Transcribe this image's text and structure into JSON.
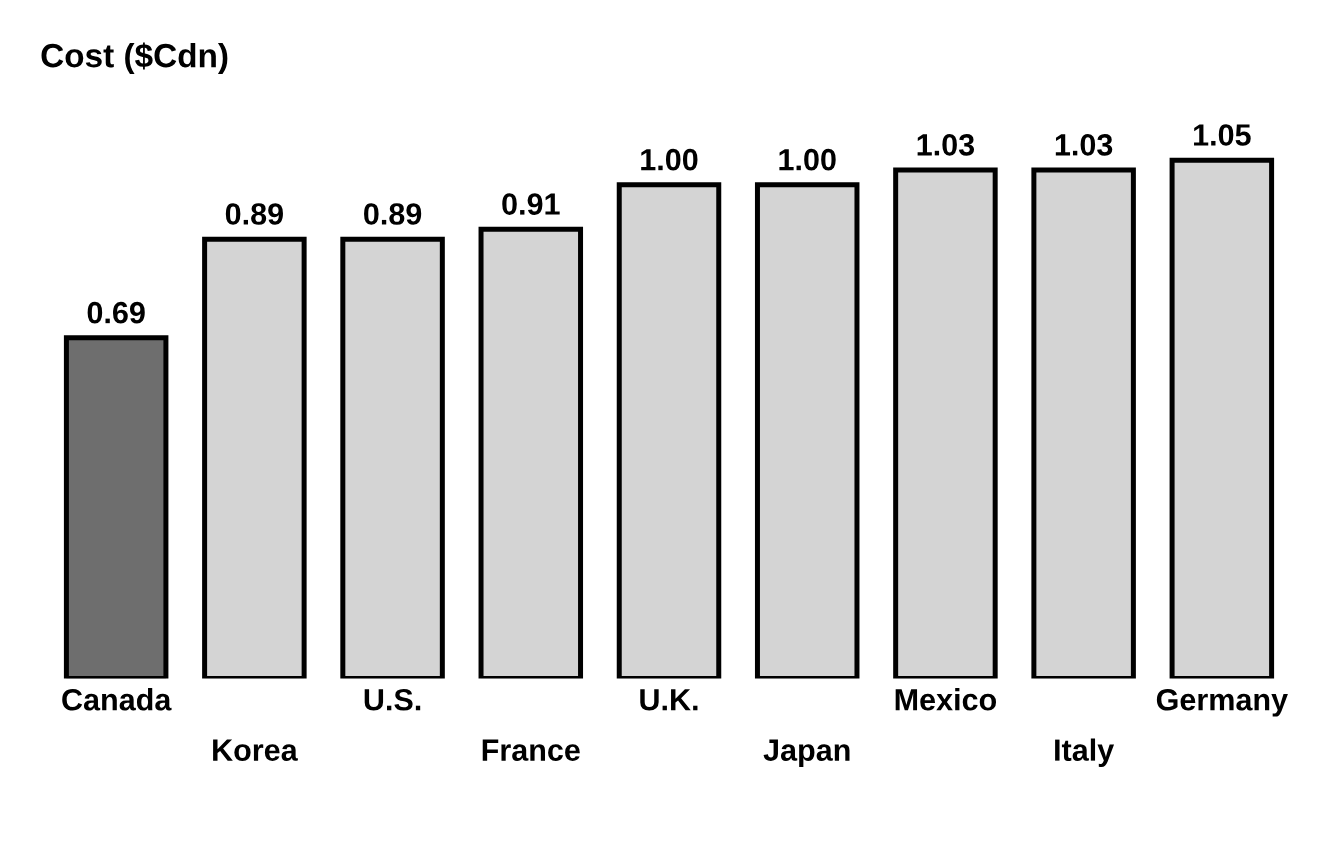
{
  "chart_data": {
    "type": "bar",
    "title": "Cost ($Cdn)",
    "categories": [
      "Canada",
      "Korea",
      "U.S.",
      "France",
      "U.K.",
      "Japan",
      "Mexico",
      "Italy",
      "Germany"
    ],
    "values": [
      0.69,
      0.89,
      0.89,
      0.91,
      1.0,
      1.0,
      1.03,
      1.03,
      1.05
    ],
    "colors": [
      "#6e6e6e",
      "#d4d4d4",
      "#d4d4d4",
      "#d4d4d4",
      "#d4d4d4",
      "#d4d4d4",
      "#d4d4d4",
      "#d4d4d4",
      "#d4d4d4"
    ],
    "value_labels": [
      "0.69",
      "0.89",
      "0.89",
      "0.91",
      "1.00",
      "1.00",
      "1.03",
      "1.03",
      "1.05"
    ],
    "tick_labels": "x",
    "grid": false,
    "legend": false
  }
}
